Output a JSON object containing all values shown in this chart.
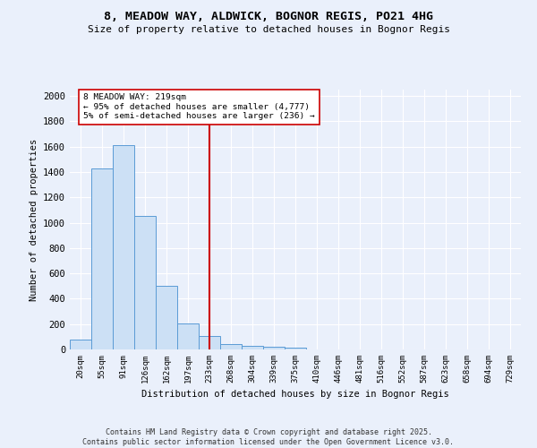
{
  "title": "8, MEADOW WAY, ALDWICK, BOGNOR REGIS, PO21 4HG",
  "subtitle": "Size of property relative to detached houses in Bognor Regis",
  "xlabel": "Distribution of detached houses by size in Bognor Regis",
  "ylabel": "Number of detached properties",
  "bin_labels": [
    "20sqm",
    "55sqm",
    "91sqm",
    "126sqm",
    "162sqm",
    "197sqm",
    "233sqm",
    "268sqm",
    "304sqm",
    "339sqm",
    "375sqm",
    "410sqm",
    "446sqm",
    "481sqm",
    "516sqm",
    "552sqm",
    "587sqm",
    "623sqm",
    "658sqm",
    "694sqm",
    "729sqm"
  ],
  "bar_values": [
    80,
    1430,
    1610,
    1050,
    500,
    205,
    105,
    40,
    27,
    18,
    14,
    0,
    0,
    0,
    0,
    0,
    0,
    0,
    0,
    0,
    0
  ],
  "bar_color": "#cce0f5",
  "bar_edge_color": "#5b9bd5",
  "vline_x": 6.0,
  "vline_color": "#cc0000",
  "annotation_text": "8 MEADOW WAY: 219sqm\n← 95% of detached houses are smaller (4,777)\n5% of semi-detached houses are larger (236) →",
  "annotation_box_color": "#ffffff",
  "annotation_box_edge": "#cc0000",
  "ylim": [
    0,
    2050
  ],
  "yticks": [
    0,
    200,
    400,
    600,
    800,
    1000,
    1200,
    1400,
    1600,
    1800,
    2000
  ],
  "bg_color": "#eaf0fb",
  "fig_bg_color": "#eaf0fb",
  "grid_color": "#ffffff",
  "footer_line1": "Contains HM Land Registry data © Crown copyright and database right 2025.",
  "footer_line2": "Contains public sector information licensed under the Open Government Licence v3.0."
}
